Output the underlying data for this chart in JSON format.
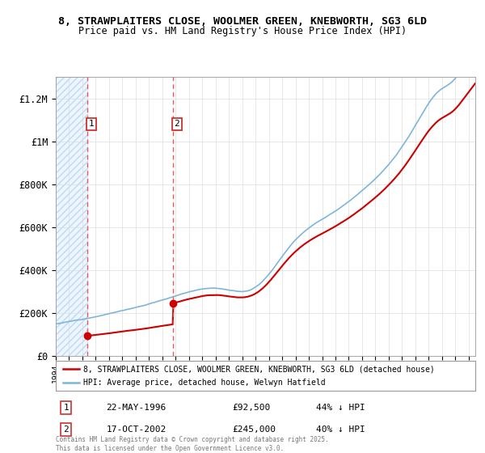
{
  "title_line1": "8, STRAWPLAITERS CLOSE, WOOLMER GREEN, KNEBWORTH, SG3 6LD",
  "title_line2": "Price paid vs. HM Land Registry's House Price Index (HPI)",
  "ylim": [
    0,
    1300000
  ],
  "yticks": [
    0,
    200000,
    400000,
    600000,
    800000,
    1000000,
    1200000
  ],
  "ytick_labels": [
    "£0",
    "£200K",
    "£400K",
    "£600K",
    "£800K",
    "£1M",
    "£1.2M"
  ],
  "sale1_year": 1996.39,
  "sale1_price": 92500,
  "sale2_year": 2002.79,
  "sale2_price": 245000,
  "red_line_color": "#cc0000",
  "blue_line_color": "#7eb6d9",
  "vline_color": "#ee5555",
  "background_color": "#ffffff",
  "legend_line1": "8, STRAWPLAITERS CLOSE, WOOLMER GREEN, KNEBWORTH, SG3 6LD (detached house)",
  "legend_line2": "HPI: Average price, detached house, Welwyn Hatfield",
  "table_rows": [
    [
      "1",
      "22-MAY-1996",
      "£92,500",
      "44% ↓ HPI"
    ],
    [
      "2",
      "17-OCT-2002",
      "£245,000",
      "40% ↓ HPI"
    ]
  ],
  "footer": "Contains HM Land Registry data © Crown copyright and database right 2025.\nThis data is licensed under the Open Government Licence v3.0.",
  "xmin": 1994,
  "xmax": 2025.5
}
